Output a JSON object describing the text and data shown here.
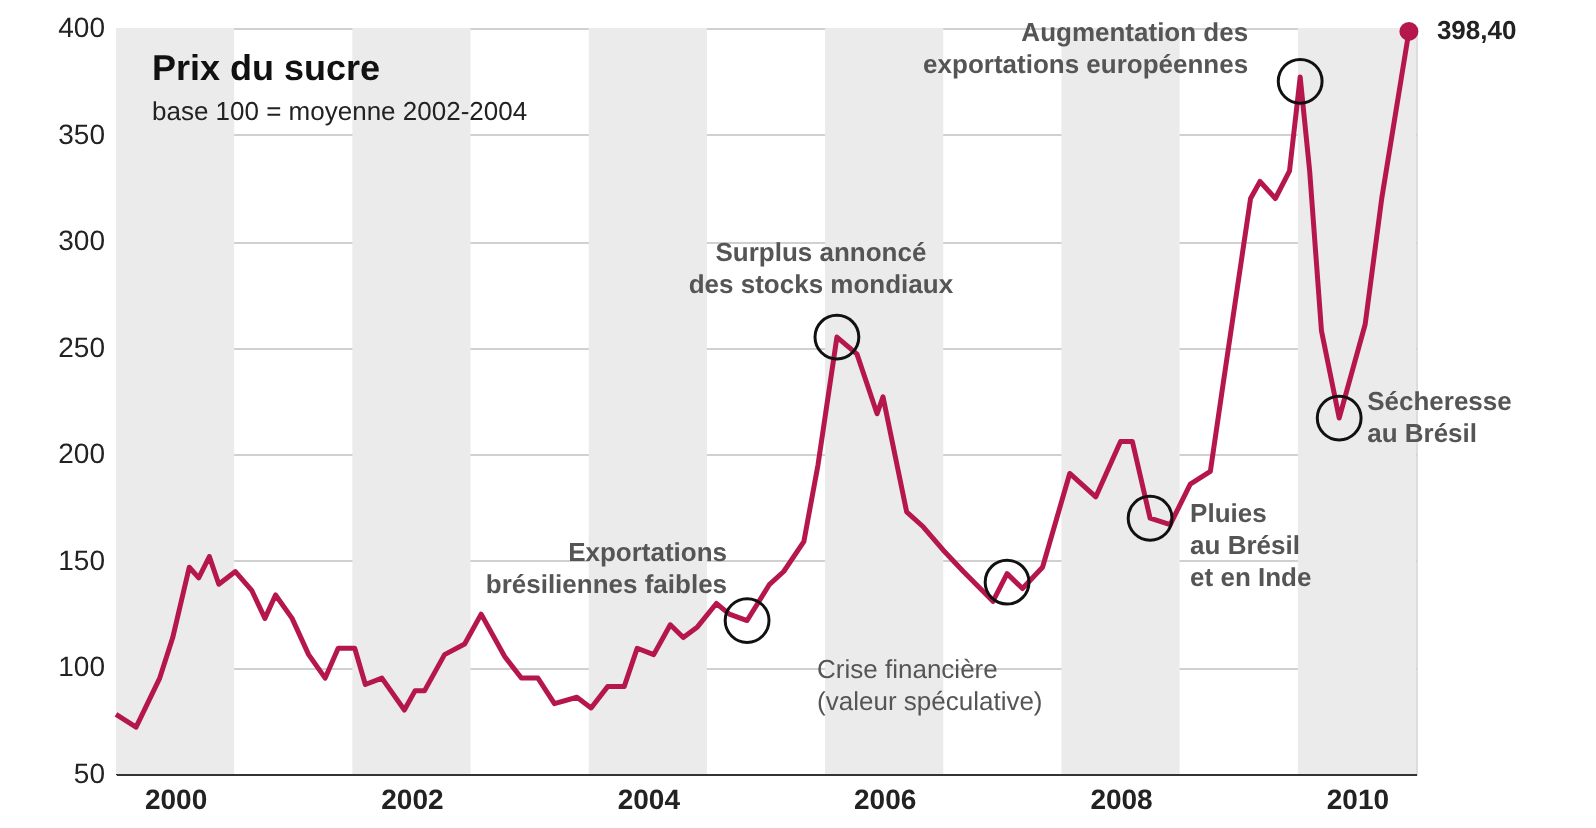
{
  "chart_data": {
    "type": "line",
    "title": "Prix du sucre",
    "subtitle": "base 100 = moyenne 2002-2004",
    "x": [
      2000.0,
      2000.17,
      2000.37,
      2000.48,
      2000.62,
      2000.7,
      2000.79,
      2000.87,
      2001.01,
      2001.15,
      2001.26,
      2001.35,
      2001.49,
      2001.63,
      2001.77,
      2001.88,
      2002.02,
      2002.11,
      2002.25,
      2002.44,
      2002.53,
      2002.61,
      2002.78,
      2002.95,
      2003.09,
      2003.29,
      2003.43,
      2003.57,
      2003.71,
      2003.9,
      2004.02,
      2004.16,
      2004.3,
      2004.41,
      2004.55,
      2004.69,
      2004.8,
      2004.92,
      2005.08,
      2005.19,
      2005.34,
      2005.53,
      2005.65,
      2005.82,
      2005.94,
      2006.1,
      2006.27,
      2006.44,
      2006.49,
      2006.69,
      2006.83,
      2007.0,
      2007.17,
      2007.42,
      2007.54,
      2007.67,
      2007.84,
      2008.07,
      2008.29,
      2008.5,
      2008.6,
      2008.75,
      2008.92,
      2009.09,
      2009.26,
      2009.36,
      2009.6,
      2009.68,
      2009.81,
      2009.93,
      2010.02,
      2010.1,
      2010.2,
      2010.35,
      2010.57,
      2010.71,
      2010.94
    ],
    "series": [
      {
        "color": "#b5174d",
        "values": [
          78,
          72,
          95,
          114,
          147,
          142,
          152,
          139,
          145,
          136,
          123,
          134,
          123,
          106,
          95,
          109,
          109,
          92,
          95,
          80,
          89,
          89,
          106,
          111,
          125,
          105,
          95,
          95,
          83,
          86,
          81,
          91,
          91,
          109,
          106,
          120,
          114,
          119,
          130,
          125,
          122,
          139,
          145,
          159,
          195,
          255,
          247,
          219,
          227,
          173,
          166,
          155,
          145,
          131,
          144,
          137,
          147,
          191,
          180,
          206,
          206,
          170,
          167,
          186,
          192,
          230,
          320,
          328,
          320,
          333,
          377,
          333,
          258,
          217,
          261,
          320,
          398.4
        ],
        "value_labels": [
          null,
          null,
          null,
          null,
          null,
          null,
          null,
          null,
          null,
          null,
          null,
          null,
          null,
          null,
          null,
          null,
          null,
          null,
          null,
          null,
          null,
          null,
          null,
          null,
          null,
          null,
          null,
          null,
          null,
          null,
          null,
          null,
          null,
          null,
          null,
          null,
          null,
          null,
          null,
          null,
          null,
          null,
          null,
          null,
          null,
          null,
          null,
          null,
          null,
          null,
          null,
          null,
          null,
          null,
          null,
          null,
          null,
          null,
          null,
          null,
          null,
          null,
          null,
          null,
          null,
          null,
          null,
          null,
          null,
          null,
          null,
          null,
          null,
          null,
          null,
          null,
          "398,40"
        ]
      }
    ],
    "xlim": [
      2000,
      2011
    ],
    "xticks": [
      {
        "value": 2000.5,
        "label": "2000"
      },
      {
        "value": 2002.5,
        "label": "2002"
      },
      {
        "value": 2004.5,
        "label": "2004"
      },
      {
        "value": 2006.5,
        "label": "2006"
      },
      {
        "value": 2008.5,
        "label": "2008"
      },
      {
        "value": 2010.5,
        "label": "2010"
      }
    ],
    "ylim": [
      50,
      400
    ],
    "yticks": [
      50,
      100,
      150,
      200,
      250,
      300,
      350,
      400
    ],
    "grid": "y",
    "line_style": "solid",
    "bands": [
      {
        "axis": "x",
        "from": 2000,
        "to": 2001,
        "color": "#ebebeb"
      },
      {
        "axis": "x",
        "from": 2002,
        "to": 2003,
        "color": "#ebebeb"
      },
      {
        "axis": "x",
        "from": 2004,
        "to": 2005,
        "color": "#ebebeb"
      },
      {
        "axis": "x",
        "from": 2006,
        "to": 2007,
        "color": "#ebebeb"
      },
      {
        "axis": "x",
        "from": 2008,
        "to": 2009,
        "color": "#ebebeb"
      },
      {
        "axis": "x",
        "from": 2010,
        "to": 2011,
        "color": "#ebebeb"
      }
    ],
    "annotations": [
      {
        "text": "Exportations\nbrésiliennes faibles",
        "x": 2005.34,
        "y": 122
      },
      {
        "text": "Surplus annoncé\ndes stocks mondiaux",
        "x": 2006.1,
        "y": 255
      },
      {
        "text": "Crise financière\n(valeur spéculative)",
        "x": 2007.54,
        "y": 140
      },
      {
        "text": "Pluies\nau Brésil\net en Inde",
        "x": 2008.75,
        "y": 170
      },
      {
        "text": "Augmentation des\nexportations européennes",
        "x": 2010.02,
        "y": 375
      },
      {
        "text": "Sécheresse\nau Brésil",
        "x": 2010.35,
        "y": 217
      }
    ]
  }
}
